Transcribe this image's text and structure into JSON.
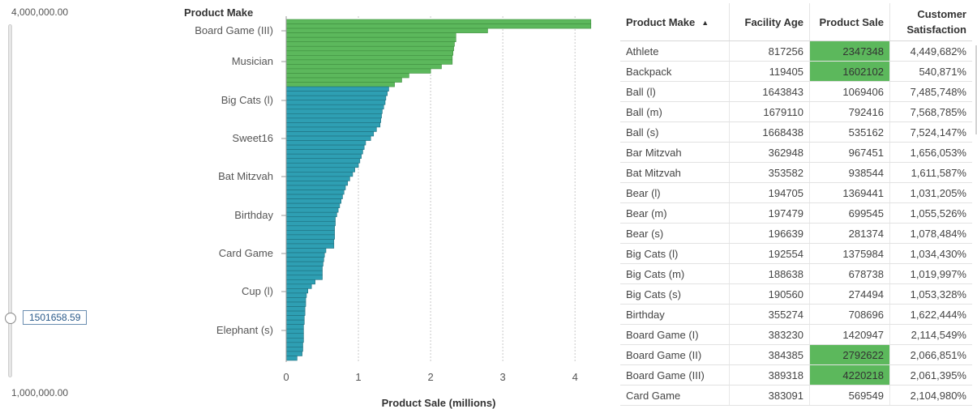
{
  "slider": {
    "max_label": "4,000,000.00",
    "min_label": "1,000,000.00",
    "value_label": "1501658.59",
    "value": 1501658.59,
    "min": 1000000,
    "max": 4000000
  },
  "chart_data": {
    "type": "bar",
    "orientation": "horizontal",
    "title": "Product Make",
    "xlabel": "Product Sale (millions)",
    "xlim": [
      0,
      4.2
    ],
    "xticks": [
      0,
      1,
      2,
      3,
      4
    ],
    "xtick_labels": [
      "0",
      "1",
      "2",
      "3",
      "4"
    ],
    "y_tick_labels": [
      "Board Game (III)",
      "Musician",
      "Big Cats (l)",
      "Sweet16",
      "Bat Mitzvah",
      "Birthday",
      "Card Game",
      "Cup (l)",
      "Elephant (s)"
    ],
    "colors": {
      "above_threshold": "#5cb85c",
      "below_threshold": "#2e9fb3"
    },
    "threshold": 1.5,
    "values": [
      4.22,
      4.22,
      2.79,
      2.35,
      2.35,
      2.33,
      2.32,
      2.31,
      2.3,
      2.3,
      2.15,
      2.0,
      1.7,
      1.6,
      1.5,
      1.42,
      1.4,
      1.38,
      1.37,
      1.35,
      1.33,
      1.32,
      1.31,
      1.3,
      1.25,
      1.21,
      1.17,
      1.1,
      1.08,
      1.06,
      1.04,
      1.02,
      1.0,
      0.95,
      0.92,
      0.88,
      0.85,
      0.82,
      0.8,
      0.78,
      0.76,
      0.74,
      0.72,
      0.7,
      0.68,
      0.68,
      0.67,
      0.67,
      0.67,
      0.66,
      0.66,
      0.55,
      0.53,
      0.52,
      0.51,
      0.5,
      0.5,
      0.5,
      0.4,
      0.35,
      0.3,
      0.28,
      0.27,
      0.27,
      0.26,
      0.26,
      0.25,
      0.25,
      0.24,
      0.24,
      0.24,
      0.24,
      0.23,
      0.23,
      0.22,
      0.15
    ]
  },
  "table": {
    "columns": {
      "make": "Product Make",
      "age": "Facility Age",
      "sale": "Product Sale",
      "sat_line1": "Customer",
      "sat_line2": "Satisfaction"
    },
    "highlight_color": "#5cb85c",
    "rows": [
      {
        "make": "Athlete",
        "age": "817256",
        "sale": "2347348",
        "sat": "4,449,682%",
        "hl": true
      },
      {
        "make": "Backpack",
        "age": "119405",
        "sale": "1602102",
        "sat": "540,871%",
        "hl": true
      },
      {
        "make": "Ball (l)",
        "age": "1643843",
        "sale": "1069406",
        "sat": "7,485,748%",
        "hl": false
      },
      {
        "make": "Ball (m)",
        "age": "1679110",
        "sale": "792416",
        "sat": "7,568,785%",
        "hl": false
      },
      {
        "make": "Ball (s)",
        "age": "1668438",
        "sale": "535162",
        "sat": "7,524,147%",
        "hl": false
      },
      {
        "make": "Bar Mitzvah",
        "age": "362948",
        "sale": "967451",
        "sat": "1,656,053%",
        "hl": false
      },
      {
        "make": "Bat Mitzvah",
        "age": "353582",
        "sale": "938544",
        "sat": "1,611,587%",
        "hl": false
      },
      {
        "make": "Bear (l)",
        "age": "194705",
        "sale": "1369441",
        "sat": "1,031,205%",
        "hl": false
      },
      {
        "make": "Bear (m)",
        "age": "197479",
        "sale": "699545",
        "sat": "1,055,526%",
        "hl": false
      },
      {
        "make": "Bear (s)",
        "age": "196639",
        "sale": "281374",
        "sat": "1,078,484%",
        "hl": false
      },
      {
        "make": "Big Cats (l)",
        "age": "192554",
        "sale": "1375984",
        "sat": "1,034,430%",
        "hl": false
      },
      {
        "make": "Big Cats (m)",
        "age": "188638",
        "sale": "678738",
        "sat": "1,019,997%",
        "hl": false
      },
      {
        "make": "Big Cats (s)",
        "age": "190560",
        "sale": "274494",
        "sat": "1,053,328%",
        "hl": false
      },
      {
        "make": "Birthday",
        "age": "355274",
        "sale": "708696",
        "sat": "1,622,444%",
        "hl": false
      },
      {
        "make": "Board Game (I)",
        "age": "383230",
        "sale": "1420947",
        "sat": "2,114,549%",
        "hl": false
      },
      {
        "make": "Board Game (II)",
        "age": "384385",
        "sale": "2792622",
        "sat": "2,066,851%",
        "hl": true
      },
      {
        "make": "Board Game (III)",
        "age": "389318",
        "sale": "4220218",
        "sat": "2,061,395%",
        "hl": true
      },
      {
        "make": "Card Game",
        "age": "383091",
        "sale": "569549",
        "sat": "2,104,980%",
        "hl": false
      }
    ]
  }
}
